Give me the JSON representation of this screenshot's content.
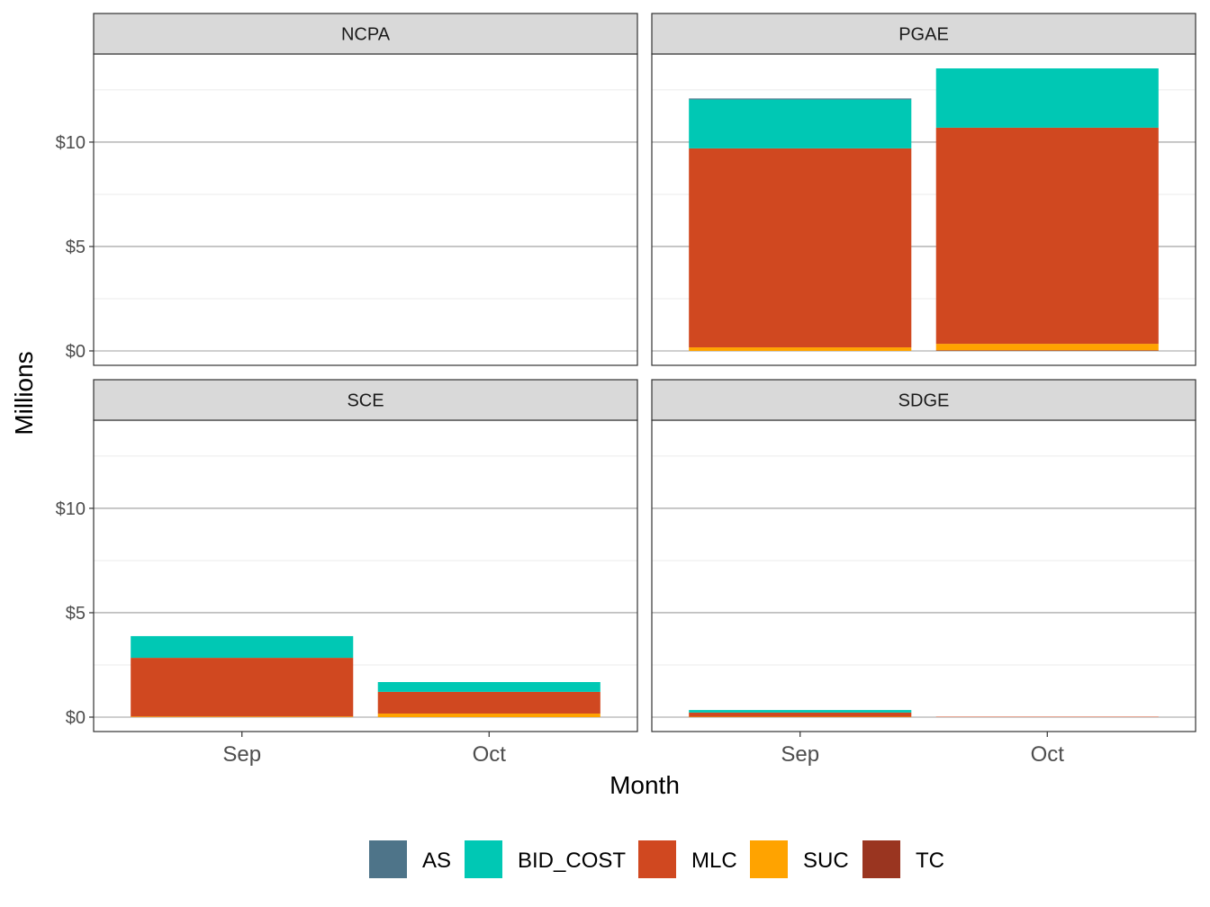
{
  "chart_data": {
    "type": "bar",
    "stacked": true,
    "facet_by": "utility",
    "xlabel": "Month",
    "ylabel": "Millions",
    "categories": [
      "Sep",
      "Oct"
    ],
    "y_ticks": [
      "$0",
      "$5",
      "$10"
    ],
    "y_tick_values": [
      0,
      5,
      10
    ],
    "ylim": [
      -0.69,
      14.22
    ],
    "grid": true,
    "legend_position": "bottom",
    "series_order_bottom_to_top": [
      "TC",
      "SUC",
      "MLC",
      "BID_COST",
      "AS"
    ],
    "legend": [
      {
        "name": "AS",
        "color": "#4E7489"
      },
      {
        "name": "BID_COST",
        "color": "#00C8B4"
      },
      {
        "name": "MLC",
        "color": "#D04820"
      },
      {
        "name": "SUC",
        "color": "#FFA300"
      },
      {
        "name": "TC",
        "color": "#9A3520"
      }
    ],
    "panels": [
      {
        "title": "NCPA",
        "values": {
          "Sep": {},
          "Oct": {}
        }
      },
      {
        "title": "PGAE",
        "values": {
          "Sep": {
            "TC": 0.0,
            "SUC": 0.17,
            "MLC": 9.53,
            "BID_COST": 2.34,
            "AS": 0.05
          },
          "Oct": {
            "TC": 0.03,
            "SUC": 0.31,
            "MLC": 10.35,
            "BID_COST": 2.84,
            "AS": 0.0
          }
        }
      },
      {
        "title": "SCE",
        "values": {
          "Sep": {
            "TC": 0.0,
            "SUC": 0.03,
            "MLC": 2.81,
            "BID_COST": 1.04,
            "AS": 0.0
          },
          "Oct": {
            "TC": 0.0,
            "SUC": 0.17,
            "MLC": 1.04,
            "BID_COST": 0.47,
            "AS": 0.0
          }
        }
      },
      {
        "title": "SDGE",
        "values": {
          "Sep": {
            "TC": 0.0,
            "SUC": 0.02,
            "MLC": 0.2,
            "BID_COST": 0.12,
            "AS": 0.0
          },
          "Oct": {
            "TC": 0.0,
            "SUC": 0.0,
            "MLC": 0.02,
            "BID_COST": 0.0,
            "AS": 0.0
          }
        }
      }
    ]
  }
}
